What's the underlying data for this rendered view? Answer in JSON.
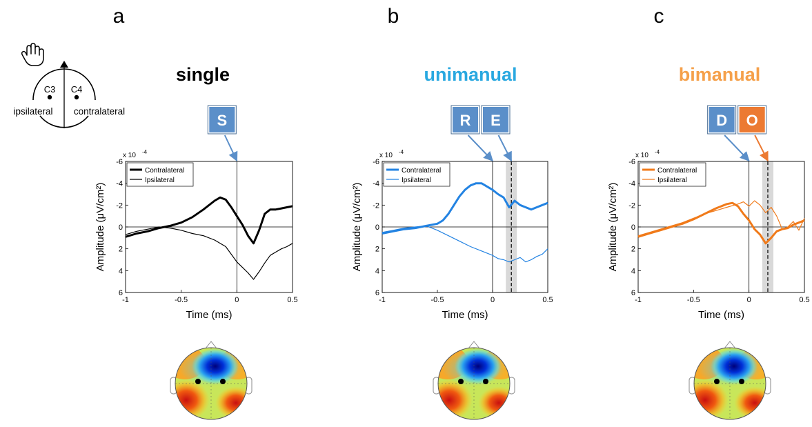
{
  "colors": {
    "single": "#000000",
    "unimanual": "#2383e2",
    "bimanual": "#f07a1a",
    "box_blue": "#5b8fc9",
    "box_orange": "#ec7a32"
  },
  "panel_letters": [
    "a",
    "b",
    "c"
  ],
  "head_diagram": {
    "left_electrode": "C3",
    "right_electrode": "C4",
    "left_label": "ipsilateral",
    "right_label": "contralateral",
    "icon": "hand-icon"
  },
  "panels": [
    {
      "title": "single",
      "title_color": "#000000",
      "markers": [
        {
          "label": "S",
          "color": "#5b8fc9",
          "time": 0
        }
      ],
      "shaded": false,
      "dashed_time": null
    },
    {
      "title": "unimanual",
      "title_color": "#29a8e0",
      "markers": [
        {
          "label": "R",
          "color": "#5b8fc9",
          "time": 0
        },
        {
          "label": "E",
          "color": "#5b8fc9",
          "time": 0.17
        }
      ],
      "shaded": [
        0.12,
        0.22
      ],
      "dashed_time": 0.17
    },
    {
      "title": "bimanual",
      "title_color": "#f5a04a",
      "markers": [
        {
          "label": "D",
          "color": "#5b8fc9",
          "time": 0
        },
        {
          "label": "O",
          "color": "#ec7a32",
          "time": 0.17
        }
      ],
      "shaded": [
        0.12,
        0.22
      ],
      "dashed_time": 0.17
    }
  ],
  "chart_data": [
    {
      "type": "line",
      "exponent_label": "x 10",
      "exponent": "-4",
      "xlabel": "Time (ms)",
      "ylabel": "Amplitude (μV/cm²)",
      "xlim": [
        -1,
        0.5
      ],
      "ylim": [
        -6,
        6
      ],
      "y_reversed": true,
      "xticks": [
        -1,
        -0.5,
        0,
        0.5
      ],
      "xtick_labels": [
        "-1",
        "-0.5",
        "0",
        "0.5"
      ],
      "yticks": [
        -6,
        -4,
        -2,
        0,
        2,
        4,
        6
      ],
      "ytick_labels": [
        "-6",
        "-4",
        "-2",
        "0",
        "2",
        "4",
        "6"
      ],
      "legend_position": "top-left",
      "series": [
        {
          "name": "Contralateral",
          "color": "#000000",
          "width": 3,
          "x": [
            -1,
            -0.9,
            -0.8,
            -0.7,
            -0.6,
            -0.5,
            -0.4,
            -0.3,
            -0.2,
            -0.15,
            -0.1,
            -0.05,
            0,
            0.05,
            0.1,
            0.15,
            0.2,
            0.25,
            0.3,
            0.35,
            0.4,
            0.45,
            0.5
          ],
          "y": [
            0.9,
            0.6,
            0.4,
            0.1,
            -0.1,
            -0.4,
            -0.9,
            -1.6,
            -2.4,
            -2.7,
            -2.5,
            -1.8,
            -1.0,
            -0.2,
            0.8,
            1.5,
            0.3,
            -1.2,
            -1.6,
            -1.6,
            -1.7,
            -1.8,
            -1.9
          ]
        },
        {
          "name": "Ipsilateral",
          "color": "#000000",
          "width": 1.2,
          "x": [
            -1,
            -0.9,
            -0.8,
            -0.7,
            -0.6,
            -0.5,
            -0.4,
            -0.3,
            -0.2,
            -0.1,
            0,
            0.05,
            0.1,
            0.15,
            0.2,
            0.25,
            0.3,
            0.35,
            0.4,
            0.45,
            0.5
          ],
          "y": [
            0.7,
            0.4,
            0.2,
            0.0,
            0.1,
            0.3,
            0.6,
            0.8,
            1.2,
            1.8,
            3.2,
            3.7,
            4.2,
            4.8,
            4.1,
            3.3,
            2.6,
            2.3,
            2.0,
            1.8,
            1.5
          ]
        }
      ]
    },
    {
      "type": "line",
      "exponent_label": "x 10",
      "exponent": "-4",
      "xlabel": "Time (ms)",
      "ylabel": "Amplitude (μV/cm²)",
      "xlim": [
        -1,
        0.5
      ],
      "ylim": [
        -6,
        6
      ],
      "y_reversed": true,
      "xticks": [
        -1,
        -0.5,
        0,
        0.5
      ],
      "xtick_labels": [
        "-1",
        "-0.5",
        "0",
        "0.5"
      ],
      "yticks": [
        -6,
        -4,
        -2,
        0,
        2,
        4,
        6
      ],
      "ytick_labels": [
        "-6",
        "-4",
        "-2",
        "0",
        "2",
        "4",
        "6"
      ],
      "legend_position": "top-left",
      "series": [
        {
          "name": "Contralateral",
          "color": "#2383e2",
          "width": 3,
          "x": [
            -1,
            -0.9,
            -0.8,
            -0.7,
            -0.6,
            -0.5,
            -0.45,
            -0.4,
            -0.35,
            -0.3,
            -0.25,
            -0.2,
            -0.15,
            -0.1,
            -0.05,
            0,
            0.05,
            0.1,
            0.15,
            0.2,
            0.25,
            0.3,
            0.35,
            0.4,
            0.45,
            0.5
          ],
          "y": [
            0.6,
            0.4,
            0.2,
            0.1,
            -0.1,
            -0.3,
            -0.6,
            -1.2,
            -2.0,
            -2.8,
            -3.4,
            -3.8,
            -4.0,
            -4.0,
            -3.7,
            -3.4,
            -3.0,
            -2.7,
            -1.8,
            -2.4,
            -2.0,
            -1.8,
            -1.6,
            -1.8,
            -2.0,
            -2.2
          ]
        },
        {
          "name": "Ipsilateral",
          "color": "#2383e2",
          "width": 1.2,
          "x": [
            -1,
            -0.9,
            -0.8,
            -0.7,
            -0.6,
            -0.5,
            -0.4,
            -0.3,
            -0.2,
            -0.1,
            0,
            0.05,
            0.1,
            0.15,
            0.2,
            0.25,
            0.3,
            0.35,
            0.4,
            0.45,
            0.5
          ],
          "y": [
            0.5,
            0.3,
            0.1,
            0.0,
            -0.1,
            0.3,
            0.8,
            1.3,
            1.8,
            2.2,
            2.6,
            2.9,
            3.0,
            3.2,
            3.0,
            2.8,
            3.2,
            3.0,
            2.7,
            2.5,
            2.0
          ]
        }
      ]
    },
    {
      "type": "line",
      "exponent_label": "x 10",
      "exponent": "-4",
      "xlabel": "Time (ms)",
      "ylabel": "Amplitude (μV/cm²)",
      "xlim": [
        -1,
        0.5
      ],
      "ylim": [
        -6,
        6
      ],
      "y_reversed": true,
      "xticks": [
        -1,
        -0.5,
        0,
        0.5
      ],
      "xtick_labels": [
        "-1",
        "-0.5",
        "0",
        "0.5"
      ],
      "yticks": [
        -6,
        -4,
        -2,
        0,
        2,
        4,
        6
      ],
      "ytick_labels": [
        "-6",
        "-4",
        "-2",
        "0",
        "2",
        "4",
        "6"
      ],
      "legend_position": "top-left",
      "series": [
        {
          "name": "Contralateral",
          "color": "#f07a1a",
          "width": 3,
          "x": [
            -1,
            -0.9,
            -0.8,
            -0.7,
            -0.6,
            -0.5,
            -0.4,
            -0.3,
            -0.2,
            -0.15,
            -0.1,
            -0.05,
            0,
            0.05,
            0.1,
            0.15,
            0.2,
            0.25,
            0.3,
            0.35,
            0.4,
            0.45,
            0.5
          ],
          "y": [
            0.9,
            0.6,
            0.3,
            0.0,
            -0.3,
            -0.7,
            -1.2,
            -1.7,
            -2.1,
            -2.2,
            -1.9,
            -1.2,
            -0.6,
            0.2,
            0.7,
            1.5,
            1.0,
            0.4,
            0.2,
            0.1,
            -0.2,
            -0.4,
            -0.6
          ]
        },
        {
          "name": "Ipsilateral",
          "color": "#f07a1a",
          "width": 1.2,
          "x": [
            -1,
            -0.9,
            -0.8,
            -0.7,
            -0.6,
            -0.5,
            -0.4,
            -0.3,
            -0.2,
            -0.1,
            -0.05,
            0,
            0.05,
            0.1,
            0.15,
            0.2,
            0.25,
            0.3,
            0.35,
            0.4,
            0.45,
            0.5
          ],
          "y": [
            0.8,
            0.5,
            0.2,
            -0.1,
            -0.4,
            -0.8,
            -1.2,
            -1.5,
            -1.8,
            -2.1,
            -2.3,
            -1.9,
            -2.4,
            -2.0,
            -1.3,
            -1.8,
            -1.0,
            0.2,
            0.0,
            -0.5,
            0.3,
            -0.8
          ]
        }
      ]
    }
  ]
}
